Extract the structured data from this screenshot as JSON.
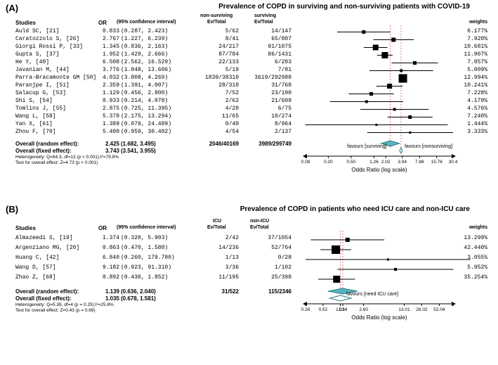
{
  "panelA": {
    "label": "(A)",
    "title": "Prevalence of COPD in surviving and non-surviving patients with COVID-19",
    "headers": {
      "studies": "Studies",
      "or": "OR",
      "ci": "(95% confidence interval)",
      "ev1top": "non-surviving",
      "ev1": "Ev/Total",
      "ev2top": "surviving",
      "ev2": "Ev/Total",
      "weights": "weights"
    },
    "rows": [
      {
        "study": "Auld SC, [21]",
        "or": "0.833",
        "ci": "(0.287,  2.423)",
        "ev1": "5/62",
        "ev2": "14/147",
        "wt": "6.177%",
        "pt": 0.833,
        "lo": 0.287,
        "hi": 2.423,
        "sz": 5
      },
      {
        "study": "Caratozzolo S, [26]",
        "or": "2.767",
        "ci": "(1.227,  6.239)",
        "ev1": "8/41",
        "ev2": "65/807",
        "wt": "7.920%",
        "pt": 2.767,
        "lo": 1.227,
        "hi": 6.239,
        "sz": 6
      },
      {
        "study": "Giorgi Rossi P, [33]",
        "or": "1.345",
        "ci": "(0.836,  2.163)",
        "ev1": "24/217",
        "ev2": "91/1075",
        "wt": "10.681%",
        "pt": 1.345,
        "lo": 0.836,
        "hi": 2.163,
        "sz": 8
      },
      {
        "study": "Gupta S, [37]",
        "or": "1.952",
        "ci": "(1.429,  2.666)",
        "ev1": "87/784",
        "ev2": "86/1431",
        "wt": "11.907%",
        "pt": 1.952,
        "lo": 1.429,
        "hi": 2.666,
        "sz": 9
      },
      {
        "study": "He Y, [40]",
        "or": "6.508",
        "ci": "(2.562, 16.529)",
        "ev1": "22/133",
        "ev2": "6/203",
        "wt": "7.057%",
        "pt": 6.508,
        "lo": 2.562,
        "hi": 16.529,
        "sz": 5
      },
      {
        "study": "Javanian M, [44]",
        "or": "3.776",
        "ci": "(1.048, 13.606)",
        "ev1": "5/19",
        "ev2": "7/81",
        "wt": "5.009%",
        "pt": 3.776,
        "lo": 1.048,
        "hi": 13.606,
        "sz": 4
      },
      {
        "study": "Parra-Bracamonte GM [50]",
        "or": "4.032",
        "ci": "(3.808,  4.269)",
        "ev1": "1839/38310",
        "ev2": "3619/292988",
        "wt": "12.994%",
        "pt": 4.032,
        "lo": 3.808,
        "hi": 4.269,
        "sz": 12
      },
      {
        "study": "Paranjpe I, [51]",
        "or": "2.359",
        "ci": "(1.391,  4.007)",
        "ev1": "28/310",
        "ev2": "31/768",
        "wt": "10.241%",
        "pt": 2.359,
        "lo": 1.391,
        "hi": 4.007,
        "sz": 7
      },
      {
        "study": "Salacup G, [53]",
        "or": "1.129",
        "ci": "(0.456,  2.800)",
        "ev1": "7/52",
        "ev2": "23/190",
        "wt": "7.228%",
        "pt": 1.129,
        "lo": 0.456,
        "hi": 2.8,
        "sz": 5
      },
      {
        "study": "Shi S, [54]",
        "or": "0.933",
        "ci": "(0.214,  4.078)",
        "ev1": "2/62",
        "ev2": "21/609",
        "wt": "4.170%",
        "pt": 0.933,
        "lo": 0.214,
        "hi": 4.078,
        "sz": 4
      },
      {
        "study": "Tomlins J, [55]",
        "or": "2.875",
        "ci": "(0.725, 11.395)",
        "ev1": "4/20",
        "ev2": "6/75",
        "wt": "4.576%",
        "pt": 2.875,
        "lo": 0.725,
        "hi": 11.395,
        "sz": 4
      },
      {
        "study": "Wang L, [58]",
        "or": "5.378",
        "ci": "(2.175, 13.294)",
        "ev1": "11/65",
        "ev2": "10/274",
        "wt": "7.240%",
        "pt": 5.378,
        "lo": 2.175,
        "hi": 13.294,
        "sz": 5
      },
      {
        "study": "Yan X, [61]",
        "or": "1.389",
        "ci": "(0.079, 24.489)",
        "ev1": "0/40",
        "ev2": "8/964",
        "wt": "1.444%",
        "pt": 1.389,
        "lo": 0.079,
        "hi": 24.489,
        "sz": 3
      },
      {
        "study": "Zhou F, [70]",
        "or": "5.400",
        "ci": "(0.959, 30.402)",
        "ev1": "4/54",
        "ev2": "2/137",
        "wt": "3.333%",
        "pt": 5.4,
        "lo": 0.959,
        "hi": 30.402,
        "sz": 3
      }
    ],
    "overall_random": {
      "label": "Overall (random effect):",
      "or": "2.425",
      "ci": "(1.682,  3.495)",
      "ev1": "2046/40169",
      "ev2": "3989/299749",
      "pt": 2.425,
      "lo": 1.682,
      "hi": 3.495
    },
    "overall_fixed": {
      "label": "Overall (fixed effect):",
      "or": "3.743",
      "ci": "(3.541,  3.955)",
      "pt": 3.743,
      "lo": 3.541,
      "hi": 3.955
    },
    "het": "Heterogeneity: Q=64.3, df=13 (p < 0.001);I²=79.8%",
    "test": "Test for overall effect: Z=4.73 (p < 0.001)",
    "favours_left": "favours [surviving]",
    "favours_right": "favours [nonsurviving]",
    "axis_title": "Odds Ratio (log scale)",
    "ticks": [
      0.08,
      0.2,
      0.5,
      1.26,
      2.02,
      3.94,
      7.88,
      15.76,
      30.4
    ],
    "tick_labels": [
      "0.08",
      "0.20",
      "0.50",
      "1.26",
      "2.02",
      "3.94",
      "7.88",
      "15.76",
      "30.4"
    ],
    "ref_lines": [
      2.425,
      3.743
    ],
    "colors": {
      "marker": "#000000",
      "diamond_fill": "#5ab4bd",
      "diamond_stroke": "#2a7a85",
      "refline": "#d9807f",
      "axisline": "#000000"
    }
  },
  "panelB": {
    "label": "(B)",
    "title": "Prevalence of COPD in patients who need ICU care and non-ICU care",
    "headers": {
      "studies": "Studies",
      "or": "OR",
      "ci": "(95% confidence interval)",
      "ev1top": "ICU",
      "ev1": "Ev/Total",
      "ev2top": "non-ICU",
      "ev2": "Ev/Total",
      "weights": "weights"
    },
    "rows": [
      {
        "study": "Almazeedi S, [19]",
        "or": "1.374",
        "ci": "(0.320,  5.903)",
        "ev1": "2/42",
        "ev2": "37/1054",
        "wt": "13.299%",
        "pt": 1.374,
        "lo": 0.32,
        "hi": 5.903,
        "sz": 6
      },
      {
        "study": "Argenziano MG, [20]",
        "or": "0.863",
        "ci": "(0.470,  1.588)",
        "ev1": "14/236",
        "ev2": "52/764",
        "wt": "42.440%",
        "pt": 0.863,
        "lo": 0.47,
        "hi": 1.588,
        "sz": 12
      },
      {
        "study": "Huang C, [42]",
        "or": "6.840",
        "ci": "(0.260, 179.780)",
        "ev1": "1/13",
        "ev2": "0/28",
        "wt": "3.055%",
        "pt": 6.84,
        "lo": 0.26,
        "hi": 179.78,
        "sz": 3
      },
      {
        "study": "Wang D, [57]",
        "or": "9.182",
        "ci": "(0.923,  91.310)",
        "ev1": "3/36",
        "ev2": "1/102",
        "wt": "5.952%",
        "pt": 9.182,
        "lo": 0.923,
        "hi": 91.31,
        "sz": 4
      },
      {
        "study": "Zhao Z, [68]",
        "or": "0.892",
        "ci": "(0.430,  1.852)",
        "ev1": "11/195",
        "ev2": "25/398",
        "wt": "35.254%",
        "pt": 0.892,
        "lo": 0.43,
        "hi": 1.852,
        "sz": 10
      }
    ],
    "overall_random": {
      "label": "Overall (random effect):",
      "or": "1.139",
      "ci": "(0.636,  2.040)",
      "ev1": "31/522",
      "ev2": "115/2346",
      "pt": 1.139,
      "lo": 0.636,
      "hi": 2.04
    },
    "overall_fixed": {
      "label": "Overall (fixed effect):",
      "or": "1.035",
      "ci": "(0.678,  1.581)",
      "pt": 1.035,
      "lo": 0.678,
      "hi": 1.581
    },
    "het": "Heterogeneity: Q=5.39, df=4 (p = 0.25);I²=25.8%",
    "test": "Test for overall effect: Z=0.43 (p = 0.66)",
    "favours_right": "favours [need ICU care]",
    "axis_title": "Odds Ratio (log scale)",
    "ticks": [
      0.26,
      0.52,
      1.03,
      1.14,
      2.6,
      13.01,
      26.02,
      52.04,
      90
    ],
    "tick_labels": [
      "0.26",
      "0.52",
      "1.03",
      "1.14",
      "2.60",
      "13.01",
      "26.02",
      "52.04",
      ""
    ],
    "ref_lines": [
      1.035,
      1.139
    ],
    "colors": {
      "marker": "#000000",
      "diamond_fill": "#5ab4bd",
      "diamond_stroke": "#2a7a85",
      "refline": "#d9807f",
      "axisline": "#000000"
    }
  }
}
